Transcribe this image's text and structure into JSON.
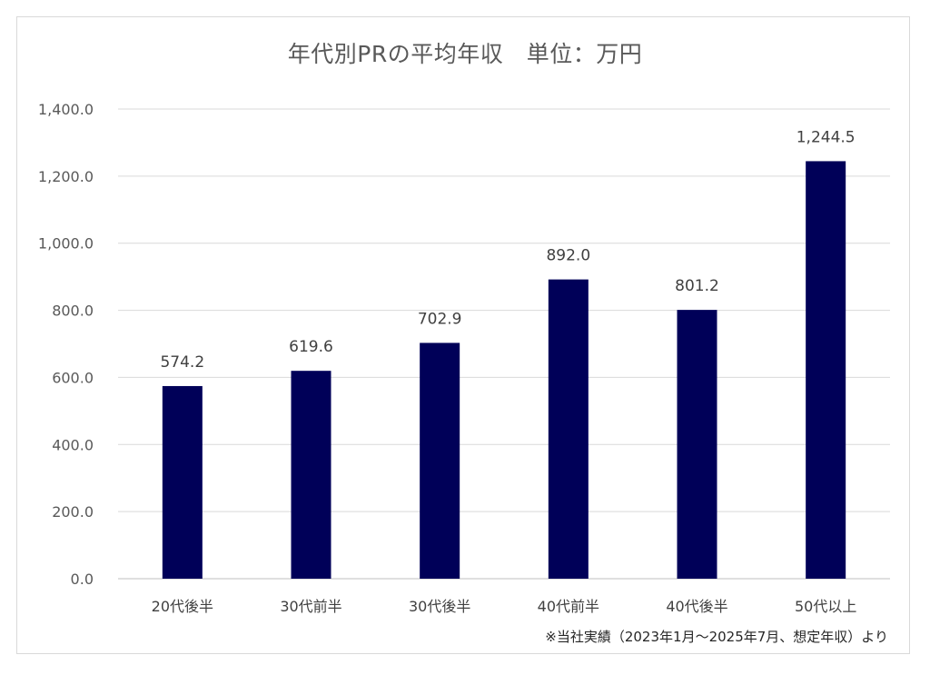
{
  "chart_data": {
    "type": "bar",
    "title": "年代別PRの平均年収　単位：万円",
    "categories": [
      "20代後半",
      "30代前半",
      "30代後半",
      "40代前半",
      "40代後半",
      "50代以上"
    ],
    "values": [
      574.2,
      619.6,
      702.9,
      892.0,
      801.2,
      1244.5
    ],
    "value_labels": [
      "574.2",
      "619.6",
      "702.9",
      "892.0",
      "801.2",
      "1,244.5"
    ],
    "ylim": [
      0,
      1400
    ],
    "yticks": [
      0,
      200,
      400,
      600,
      800,
      1000,
      1200,
      1400
    ],
    "ytick_labels": [
      "0.0",
      "200.0",
      "400.0",
      "600.0",
      "800.0",
      "1,000.0",
      "1,200.0",
      "1,400.0"
    ],
    "grid": true,
    "legend": "none",
    "bar_color": "#000058",
    "note": "※当社実績（2023年1月～2025年7月、想定年収）より"
  }
}
